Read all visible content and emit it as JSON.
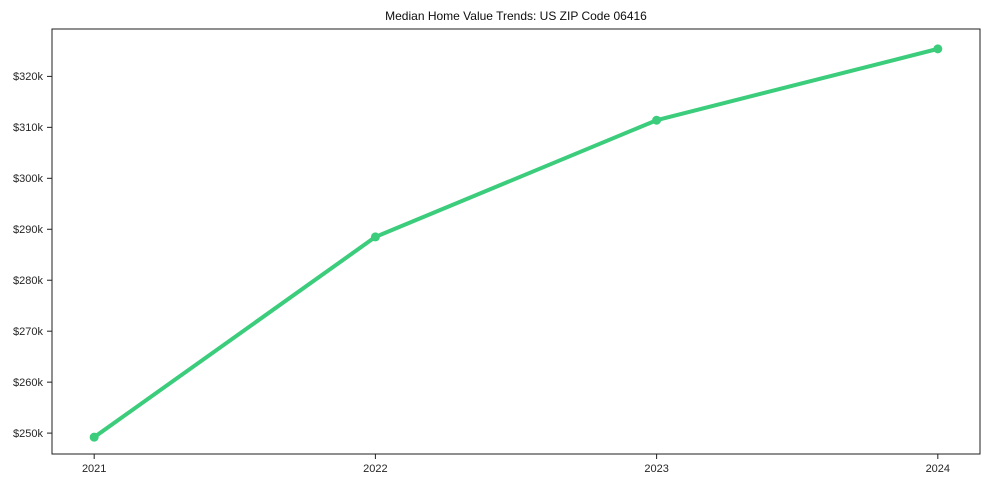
{
  "window": {
    "background_color": "#ffffff"
  },
  "chart_data": {
    "type": "line",
    "title": "Median Home Value Trends: US ZIP Code 06416",
    "x": [
      2021,
      2022,
      2023,
      2024
    ],
    "x_tick_labels": [
      "2021",
      "2022",
      "2023",
      "2024"
    ],
    "series": [
      {
        "name": "median-home-value",
        "values": [
          249200,
          288500,
          311400,
          325400
        ],
        "color": "#3bcd7c",
        "line_width": 4,
        "marker": "circle",
        "marker_radius": 4.5
      }
    ],
    "y_ticks": [
      250000,
      260000,
      270000,
      280000,
      290000,
      300000,
      310000,
      320000
    ],
    "y_tick_labels": [
      "$250k",
      "$260k",
      "$270k",
      "$280k",
      "$290k",
      "$300k",
      "$310k",
      "$320k"
    ],
    "xlim": [
      2020.85,
      2024.15
    ],
    "ylim": [
      245900,
      329300
    ],
    "grid": false,
    "legend": false,
    "axis_color": "#1f1f1f",
    "tick_label_color": "#262626",
    "title_color": "#0d0d0d"
  }
}
